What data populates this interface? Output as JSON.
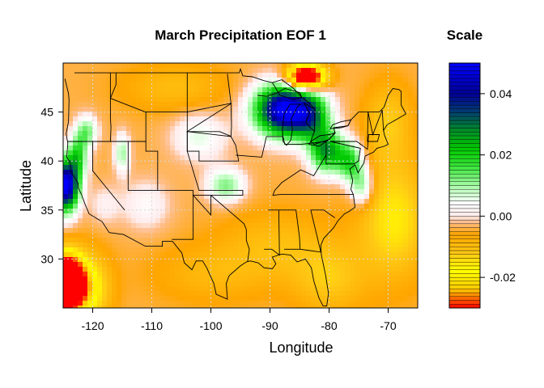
{
  "chart_data": {
    "type": "heatmap",
    "title": "March Precipitation EOF 1",
    "xlabel": "Longitude",
    "ylabel": "Latitude",
    "xlim": [
      -125,
      -65
    ],
    "ylim": [
      25,
      50
    ],
    "xticks": [
      -120,
      -110,
      -100,
      -90,
      -80,
      -70
    ],
    "yticks": [
      30,
      35,
      40,
      45
    ],
    "xtick_labels": [
      "-120",
      "-110",
      "-100",
      "-90",
      "-80",
      "-70"
    ],
    "ytick_labels": [
      "30",
      "35",
      "40",
      "45"
    ],
    "grid": true,
    "basemap": "US state and coastline outlines",
    "color_scale": {
      "title": "Scale",
      "range": [
        -0.03,
        0.05
      ],
      "ticks": [
        -0.02,
        0.0,
        0.02,
        0.04
      ],
      "tick_labels": [
        "-0.02",
        "0.00",
        "0.02",
        "0.04"
      ],
      "colors": [
        "#ff0000",
        "#ffff00",
        "#ffa500",
        "#ffffff",
        "#00ff00",
        "#00008b",
        "#0000ff"
      ]
    },
    "field_features": [
      {
        "label": "Great Lakes positive maximum",
        "lon": -87,
        "lat": 45.5,
        "value": 0.045
      },
      {
        "label": "Pacific Northwest positive",
        "lon": -124,
        "lat": 37.5,
        "value": 0.035
      },
      {
        "label": "Northern Rockies positive",
        "lon": -121,
        "lat": 43,
        "value": 0.012
      },
      {
        "label": "Central Plains positive",
        "lon": -97,
        "lat": 37.5,
        "value": 0.012
      },
      {
        "label": "Southern California negative minimum",
        "lon": -124.5,
        "lat": 27.5,
        "value": -0.03
      },
      {
        "label": "Southern US near zero to negative",
        "lon": -90,
        "lat": 31,
        "value": -0.005
      }
    ]
  }
}
